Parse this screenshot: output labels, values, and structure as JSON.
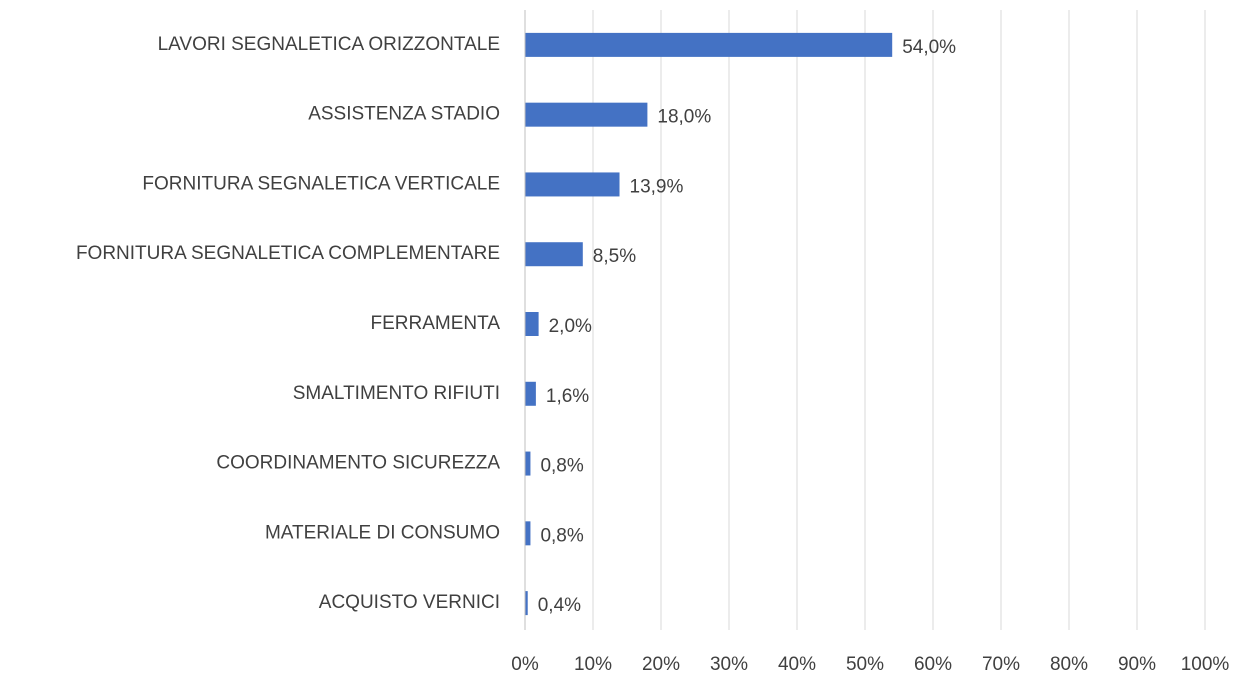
{
  "chart_data": {
    "type": "bar",
    "orientation": "horizontal",
    "categories": [
      "LAVORI SEGNALETICA ORIZZONTALE",
      "ASSISTENZA STADIO",
      "FORNITURA SEGNALETICA VERTICALE",
      "FORNITURA SEGNALETICA COMPLEMENTARE",
      "FERRAMENTA",
      "SMALTIMENTO RIFIUTI",
      "COORDINAMENTO SICUREZZA",
      "MATERIALE DI CONSUMO",
      "ACQUISTO VERNICI"
    ],
    "values": [
      54.0,
      18.0,
      13.9,
      8.5,
      2.0,
      1.6,
      0.8,
      0.8,
      0.4
    ],
    "value_labels": [
      "54,0%",
      "18,0%",
      "13,9%",
      "8,5%",
      "2,0%",
      "1,6%",
      "0,8%",
      "0,8%",
      "0,4%"
    ],
    "color": "#4472c4",
    "xlim": [
      0,
      100
    ],
    "xticks": [
      {
        "value": 0,
        "label": "0%"
      },
      {
        "value": 10,
        "label": "10%"
      },
      {
        "value": 20,
        "label": "20%"
      },
      {
        "value": 30,
        "label": "30%"
      },
      {
        "value": 40,
        "label": "40%"
      },
      {
        "value": 50,
        "label": "50%"
      },
      {
        "value": 60,
        "label": "60%"
      },
      {
        "value": 70,
        "label": "70%"
      },
      {
        "value": 80,
        "label": "80%"
      },
      {
        "value": 90,
        "label": "90%"
      },
      {
        "value": 100,
        "label": "100%"
      }
    ],
    "grid": true
  }
}
